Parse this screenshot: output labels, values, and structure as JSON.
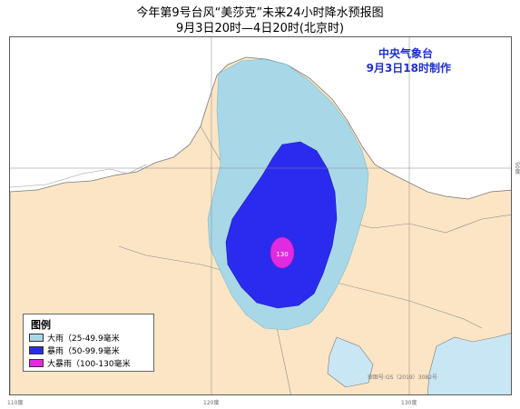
{
  "title": "今年第9号台风“美莎克”未来24小时降水预报图",
  "subtitle": "9月3日20时—4日20时(北京时)",
  "agency": {
    "name": "中央气象台",
    "made": "9月3日18时制作"
  },
  "peak_label": "130",
  "legend": {
    "title": "图例",
    "items": [
      {
        "label": "大雨（25-49.9毫米",
        "color": "#a8d8e8"
      },
      {
        "label": "暴雨（50-99.9毫米",
        "color": "#2b2bf0"
      },
      {
        "label": "大暴雨（100-130毫米",
        "color": "#e02be0"
      }
    ]
  },
  "longitude_labels": [
    "110度",
    "120度",
    "130度"
  ],
  "latitude_labels": [
    "50度"
  ],
  "review_no": "审图号:GS（2019）3082号",
  "colors": {
    "land": "#fce5c4",
    "heavy_rain": "#a8d8e8",
    "rainstorm": "#2b2bf0",
    "heavy_rainstorm": "#e02be0",
    "sea": "#c9e6f5"
  }
}
